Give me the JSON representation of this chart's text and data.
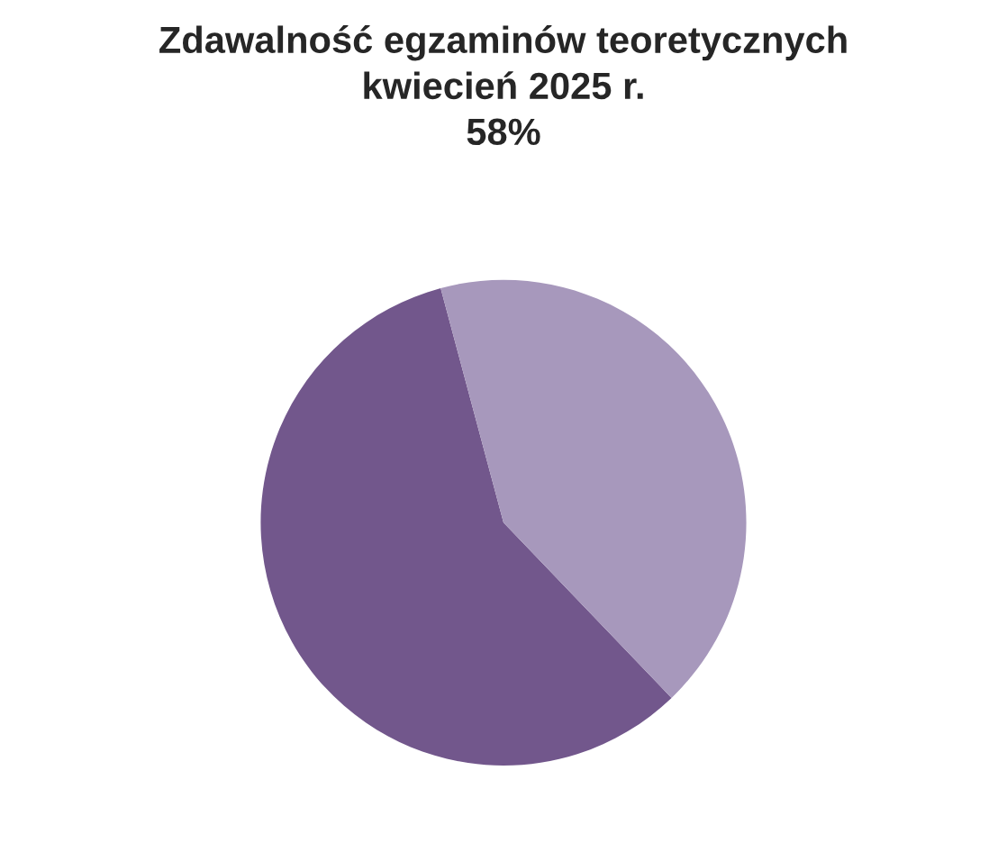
{
  "chart_data": {
    "type": "pie",
    "title": "Zdawalność egzaminów teoretycznych\nkwiecień 2025 r.\n58%",
    "categories": [
      null,
      null
    ],
    "values": [
      58,
      42
    ],
    "colors": [
      "#72578c",
      "#a798bc"
    ]
  }
}
